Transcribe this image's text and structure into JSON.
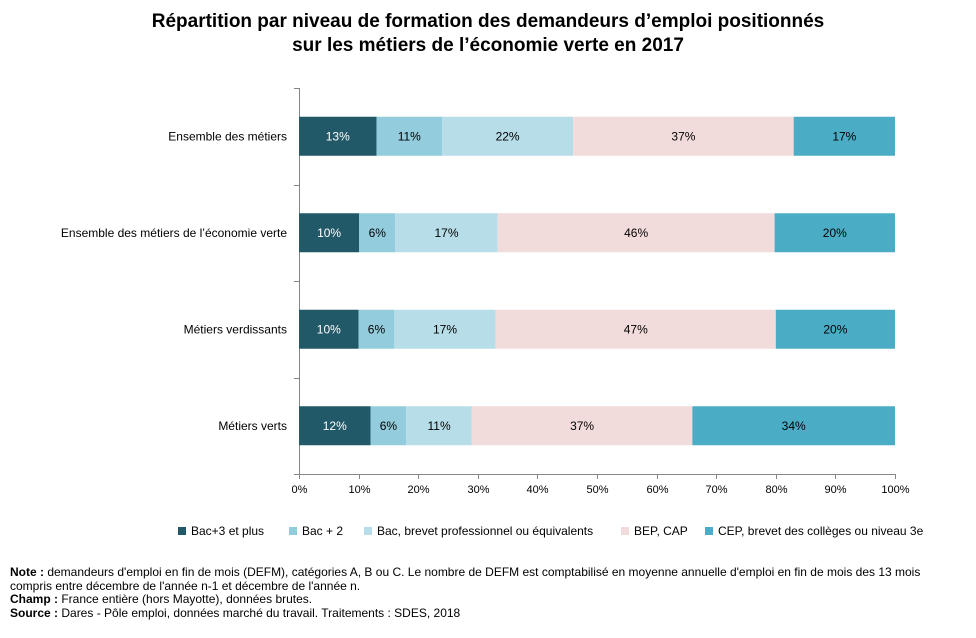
{
  "title": {
    "line1": "Répartition  par niveau de formation des demandeurs d’emploi positionnés",
    "line2": "sur les métiers de l’économie  verte en 2017"
  },
  "chart_data": {
    "type": "bar",
    "orientation": "horizontal",
    "stacked": true,
    "categories": [
      "Ensemble des métiers",
      "Ensemble des métiers de l’économie verte",
      "Métiers verdissants",
      "Métiers verts"
    ],
    "series": [
      {
        "name": "Bac+3 et plus",
        "color": "#215968",
        "values": [
          13,
          10,
          10,
          12
        ]
      },
      {
        "name": "Bac + 2",
        "color": "#93CDDD",
        "values": [
          11,
          6,
          6,
          6
        ]
      },
      {
        "name": "Bac, brevet professionnel ou équivalents",
        "color": "#B7DEE8",
        "values": [
          22,
          17,
          17,
          11
        ]
      },
      {
        "name": "BEP, CAP",
        "color": "#F2DCDB",
        "values": [
          37,
          46,
          47,
          37
        ]
      },
      {
        "name": "CEP, brevet des collèges ou niveau 3e",
        "color": "#4BACC6",
        "values": [
          17,
          20,
          20,
          34
        ]
      }
    ],
    "xlim": [
      0,
      100
    ],
    "xticks": [
      "0%",
      "10%",
      "20%",
      "30%",
      "40%",
      "50%",
      "60%",
      "70%",
      "80%",
      "90%",
      "100%"
    ],
    "value_suffix": "%",
    "legend_position": "bottom",
    "grid": false
  },
  "notes": {
    "note_label": "Note :",
    "note_text": " demandeurs d'emploi en fin de mois (DEFM), catégories A, B ou C. Le nombre de DEFM est comptabilisé en moyenne annuelle d'emploi en fin de mois des 13 mois compris entre décembre de l'année n-1 et décembre de l'année n.",
    "champ_label": "Champ :",
    "champ_text": " France entière (hors Mayotte), données brutes.",
    "source_label": "Source :",
    "source_text": " Dares - Pôle emploi, données marché du travail. Traitements : SDES, 2018"
  }
}
